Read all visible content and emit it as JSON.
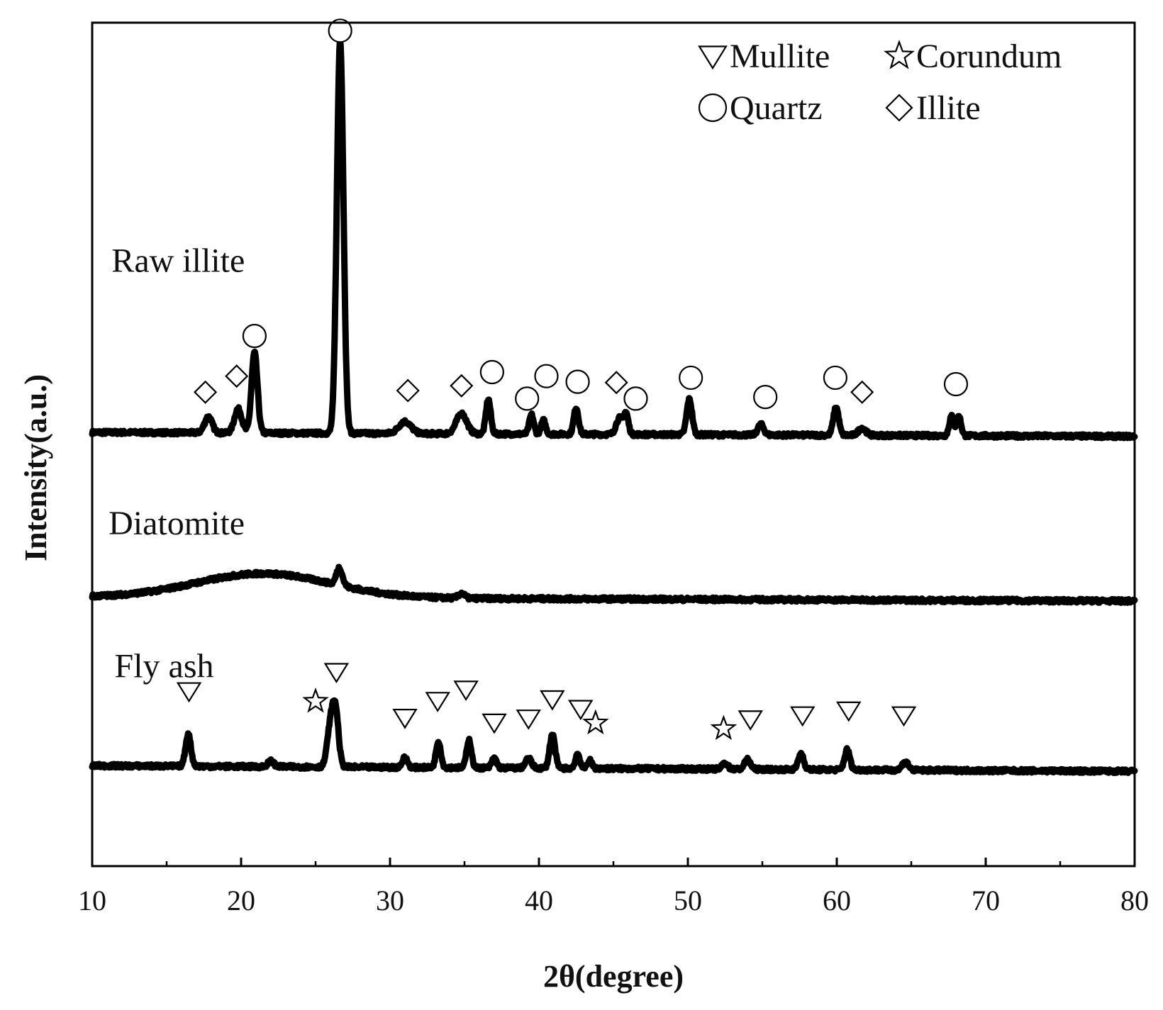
{
  "chart_data": {
    "type": "line",
    "xlabel": "2θ(degree)",
    "ylabel": "Intensity(a.u.)",
    "xlim": [
      10,
      80
    ],
    "xticks": [
      10,
      20,
      30,
      40,
      50,
      60,
      70,
      80
    ],
    "ylim": [
      0,
      105
    ],
    "grid": false,
    "legend": {
      "position": "top-right",
      "entries": [
        {
          "symbol": "triangle-down",
          "label": "Mullite"
        },
        {
          "symbol": "star",
          "label": "Corundum"
        },
        {
          "symbol": "circle",
          "label": "Quartz"
        },
        {
          "symbol": "diamond",
          "label": "Illite"
        }
      ]
    },
    "series": [
      {
        "name": "Raw illite",
        "baseline": 54,
        "baseline_end": 53.5,
        "peaks": [
          {
            "x": 17.8,
            "h": 2.0,
            "w": 0.25,
            "phase": "Illite"
          },
          {
            "x": 19.8,
            "h": 3.0,
            "w": 0.25,
            "phase": "Illite"
          },
          {
            "x": 20.9,
            "h": 10.0,
            "w": 0.2,
            "phase": "Quartz"
          },
          {
            "x": 26.65,
            "h": 49.0,
            "w": 0.22,
            "phase": "Quartz"
          },
          {
            "x": 31.0,
            "h": 1.5,
            "w": 0.4,
            "phase": "Illite"
          },
          {
            "x": 34.8,
            "h": 2.5,
            "w": 0.35,
            "phase": "Illite"
          },
          {
            "x": 36.6,
            "h": 4.3,
            "w": 0.16,
            "phase": "Quartz"
          },
          {
            "x": 39.5,
            "h": 2.4,
            "w": 0.15,
            "phase": "Quartz"
          },
          {
            "x": 40.3,
            "h": 1.7,
            "w": 0.15,
            "phase": "Quartz"
          },
          {
            "x": 42.5,
            "h": 3.3,
            "w": 0.16,
            "phase": "Quartz"
          },
          {
            "x": 45.4,
            "h": 2.0,
            "w": 0.22,
            "phase": "Illite"
          },
          {
            "x": 45.85,
            "h": 2.5,
            "w": 0.16,
            "phase": "Quartz"
          },
          {
            "x": 50.1,
            "h": 4.4,
            "w": 0.18,
            "phase": "Quartz"
          },
          {
            "x": 54.9,
            "h": 1.3,
            "w": 0.2,
            "phase": "Quartz"
          },
          {
            "x": 59.95,
            "h": 3.5,
            "w": 0.18,
            "phase": "Quartz"
          },
          {
            "x": 61.7,
            "h": 0.9,
            "w": 0.25,
            "phase": "Illite"
          },
          {
            "x": 67.7,
            "h": 2.4,
            "w": 0.15,
            "phase": "Quartz"
          },
          {
            "x": 68.2,
            "h": 2.4,
            "w": 0.15,
            "phase": "Quartz"
          }
        ]
      },
      {
        "name": "Diatomite",
        "baseline": 33.5,
        "baseline_end": 33.0,
        "hump": {
          "x": 21.5,
          "h": 3.0,
          "w": 4.5
        },
        "peaks": [
          {
            "x": 26.6,
            "h": 2.2,
            "w": 0.2,
            "phase": "Quartz"
          },
          {
            "x": 34.8,
            "h": 0.6,
            "w": 0.2,
            "phase": "Quartz"
          }
        ]
      },
      {
        "name": "Fly ash",
        "baseline": 12.5,
        "baseline_end": 11.8,
        "peaks": [
          {
            "x": 16.45,
            "h": 4.0,
            "w": 0.18,
            "phase": "Mullite"
          },
          {
            "x": 22.0,
            "h": 0.7,
            "w": 0.2,
            "phase": "Mullite"
          },
          {
            "x": 26.0,
            "h": 5.0,
            "w": 0.22,
            "phase": "Corundum"
          },
          {
            "x": 26.35,
            "h": 6.5,
            "w": 0.2,
            "phase": "Mullite"
          },
          {
            "x": 31.0,
            "h": 1.2,
            "w": 0.18,
            "phase": "Mullite"
          },
          {
            "x": 33.25,
            "h": 3.3,
            "w": 0.16,
            "phase": "Mullite"
          },
          {
            "x": 35.3,
            "h": 3.5,
            "w": 0.16,
            "phase": "Mullite"
          },
          {
            "x": 37.0,
            "h": 1.2,
            "w": 0.16,
            "phase": "Mullite"
          },
          {
            "x": 39.3,
            "h": 1.2,
            "w": 0.2,
            "phase": "Mullite"
          },
          {
            "x": 40.9,
            "h": 4.2,
            "w": 0.18,
            "phase": "Mullite"
          },
          {
            "x": 42.6,
            "h": 1.8,
            "w": 0.15,
            "phase": "Mullite"
          },
          {
            "x": 43.4,
            "h": 1.0,
            "w": 0.15,
            "phase": "Corundum"
          },
          {
            "x": 52.5,
            "h": 0.8,
            "w": 0.18,
            "phase": "Corundum"
          },
          {
            "x": 54.0,
            "h": 1.2,
            "w": 0.2,
            "phase": "Mullite"
          },
          {
            "x": 57.6,
            "h": 2.0,
            "w": 0.18,
            "phase": "Mullite"
          },
          {
            "x": 60.7,
            "h": 2.5,
            "w": 0.18,
            "phase": "Mullite"
          },
          {
            "x": 64.6,
            "h": 1.1,
            "w": 0.2,
            "phase": "Mullite"
          }
        ]
      }
    ],
    "markers": [
      {
        "symbol": "diamond",
        "x": 17.6,
        "y": 59.0
      },
      {
        "symbol": "diamond",
        "x": 19.7,
        "y": 61.0
      },
      {
        "symbol": "circle",
        "x": 20.9,
        "y": 66.0
      },
      {
        "symbol": "circle",
        "x": 26.65,
        "y": 104.0
      },
      {
        "symbol": "diamond",
        "x": 31.2,
        "y": 59.2
      },
      {
        "symbol": "diamond",
        "x": 34.8,
        "y": 59.8
      },
      {
        "symbol": "circle",
        "x": 36.85,
        "y": 61.5
      },
      {
        "symbol": "circle",
        "x": 39.2,
        "y": 58.2
      },
      {
        "symbol": "circle",
        "x": 40.5,
        "y": 61.0
      },
      {
        "symbol": "circle",
        "x": 42.6,
        "y": 60.3
      },
      {
        "symbol": "diamond",
        "x": 45.2,
        "y": 60.2
      },
      {
        "symbol": "circle",
        "x": 46.5,
        "y": 58.2
      },
      {
        "symbol": "circle",
        "x": 50.2,
        "y": 60.8
      },
      {
        "symbol": "circle",
        "x": 55.2,
        "y": 58.4
      },
      {
        "symbol": "circle",
        "x": 59.9,
        "y": 60.8
      },
      {
        "symbol": "diamond",
        "x": 61.7,
        "y": 59.0
      },
      {
        "symbol": "circle",
        "x": 68.0,
        "y": 60.0
      },
      {
        "symbol": "triangle-down",
        "x": 16.5,
        "y": 21.8
      },
      {
        "symbol": "star",
        "x": 25.0,
        "y": 20.5
      },
      {
        "symbol": "triangle-down",
        "x": 26.4,
        "y": 24.2
      },
      {
        "symbol": "triangle-down",
        "x": 31.0,
        "y": 18.5
      },
      {
        "symbol": "triangle-down",
        "x": 33.2,
        "y": 20.6
      },
      {
        "symbol": "triangle-down",
        "x": 35.1,
        "y": 22.0
      },
      {
        "symbol": "triangle-down",
        "x": 37.0,
        "y": 17.9
      },
      {
        "symbol": "triangle-down",
        "x": 39.3,
        "y": 18.4
      },
      {
        "symbol": "triangle-down",
        "x": 40.9,
        "y": 20.8
      },
      {
        "symbol": "triangle-down",
        "x": 42.8,
        "y": 19.6
      },
      {
        "symbol": "star",
        "x": 43.8,
        "y": 17.8
      },
      {
        "symbol": "star",
        "x": 52.4,
        "y": 17.1
      },
      {
        "symbol": "triangle-down",
        "x": 54.2,
        "y": 18.3
      },
      {
        "symbol": "triangle-down",
        "x": 57.7,
        "y": 18.8
      },
      {
        "symbol": "triangle-down",
        "x": 60.8,
        "y": 19.4
      },
      {
        "symbol": "triangle-down",
        "x": 64.5,
        "y": 18.8
      }
    ],
    "labels": [
      {
        "text": "Raw illite",
        "x": 11.3,
        "y": 74.0
      },
      {
        "text": "Diatomite",
        "x": 11.1,
        "y": 41.3
      },
      {
        "text": "Fly ash",
        "x": 11.5,
        "y": 23.5
      }
    ]
  }
}
